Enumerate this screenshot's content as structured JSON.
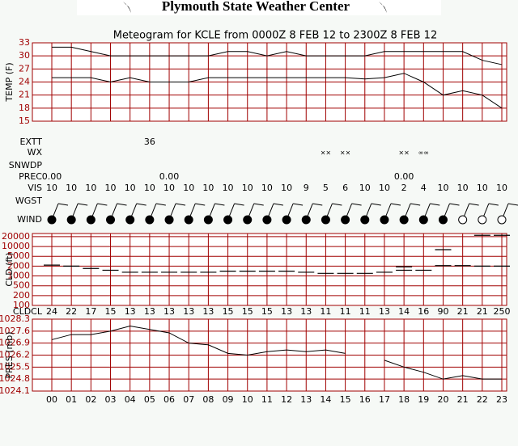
{
  "header": {
    "title": "Plymouth State Weather Center"
  },
  "chart_data": [
    {
      "type": "line",
      "title": "Meteogram for KCLE from 0000Z  8 FEB 12 to 2300Z  8 FEB 12",
      "ylabel": "TEMP (F)",
      "ylim": [
        15,
        33
      ],
      "yticks": [
        15,
        18,
        21,
        24,
        27,
        30,
        33
      ],
      "grid": true,
      "series": [
        {
          "color": "#000000",
          "values": [
            32,
            32,
            31,
            30,
            30,
            30,
            30,
            30,
            30,
            31,
            31,
            30,
            31,
            30,
            30,
            30,
            30,
            31,
            31,
            31,
            31,
            31,
            29,
            28
          ]
        },
        {
          "color": "#000000",
          "values": [
            25,
            25,
            25,
            24,
            25,
            24,
            24,
            24,
            25,
            25,
            25,
            25,
            25,
            25,
            25,
            25,
            24.7,
            25,
            26,
            24,
            21,
            22,
            21,
            18
          ]
        }
      ]
    },
    {
      "type": "scatter",
      "ylabel": "CLD (ft)",
      "ylim": [
        100,
        25000
      ],
      "yticks": [
        100,
        200,
        500,
        1000,
        2000,
        5000,
        10000,
        20000
      ],
      "grid": true,
      "series": [
        {
          "color": "#000000",
          "values": [
            2200,
            2000,
            1700,
            1500,
            1300,
            1300,
            1300,
            1300,
            1300,
            1400,
            1400,
            1400,
            1400,
            1300,
            1200,
            1200,
            1200,
            1300,
            1500,
            1500,
            2100,
            2100,
            2000,
            2000
          ]
        },
        {
          "color": "#000000",
          "values": [
            null,
            null,
            null,
            null,
            null,
            null,
            null,
            null,
            null,
            null,
            null,
            null,
            null,
            null,
            null,
            null,
            null,
            null,
            1900,
            null,
            8000,
            null,
            22000,
            22000
          ]
        }
      ]
    },
    {
      "type": "line",
      "ylabel": "PRES (mb)",
      "ylim": [
        1024.1,
        1028.3
      ],
      "yticks": [
        1024.1,
        1024.8,
        1025.5,
        1026.2,
        1026.9,
        1027.6,
        1028.3
      ],
      "grid": true,
      "categories": [
        "00",
        "01",
        "02",
        "03",
        "04",
        "05",
        "06",
        "07",
        "08",
        "09",
        "10",
        "11",
        "12",
        "13",
        "14",
        "15",
        "16",
        "17",
        "18",
        "19",
        "20",
        "21",
        "22",
        "23"
      ],
      "series": [
        {
          "color": "#000000",
          "values": [
            1027.1,
            1027.4,
            1027.4,
            1027.6,
            1027.9,
            1027.7,
            1027.5,
            1026.9,
            1026.8,
            1026.3,
            1026.2,
            1026.4,
            1026.5,
            1026.4,
            1026.5,
            1026.3,
            null,
            1025.9,
            1025.5,
            1025.2,
            1024.8,
            1025.0,
            1024.8,
            1024.8
          ]
        }
      ]
    }
  ],
  "rows": [
    {
      "label": "EXTT",
      "values": [
        null,
        null,
        null,
        null,
        null,
        "36"
      ]
    },
    {
      "label": "WX",
      "values": [
        null,
        null,
        null,
        null,
        null,
        null,
        null,
        null,
        null,
        null,
        null,
        null,
        null,
        null,
        "××",
        "××",
        null,
        null,
        "××",
        "∞∞"
      ]
    },
    {
      "label": "SNWDP"
    },
    {
      "label": "PREC",
      "values": [
        "0.00",
        null,
        null,
        null,
        null,
        null,
        "0.00",
        null,
        null,
        null,
        null,
        null,
        null,
        null,
        null,
        null,
        null,
        null,
        "0.00"
      ]
    },
    {
      "label": "VIS",
      "values": [
        "10",
        "10",
        "10",
        "10",
        "10",
        "10",
        "10",
        "10",
        "10",
        "10",
        "10",
        "10",
        "10",
        "9",
        "5",
        "6",
        "10",
        "10",
        "2",
        "4",
        "10",
        "10",
        "10",
        "10"
      ]
    },
    {
      "label": "WGST"
    },
    {
      "label": "WIND"
    },
    {
      "label": "CLDCL",
      "values": [
        "24",
        "22",
        "17",
        "15",
        "13",
        "13",
        "13",
        "13",
        "13",
        "15",
        "15",
        "15",
        "13",
        "13",
        "11",
        "11",
        "11",
        "13",
        "14",
        "16",
        "90",
        "21",
        "21",
        "250"
      ]
    }
  ]
}
